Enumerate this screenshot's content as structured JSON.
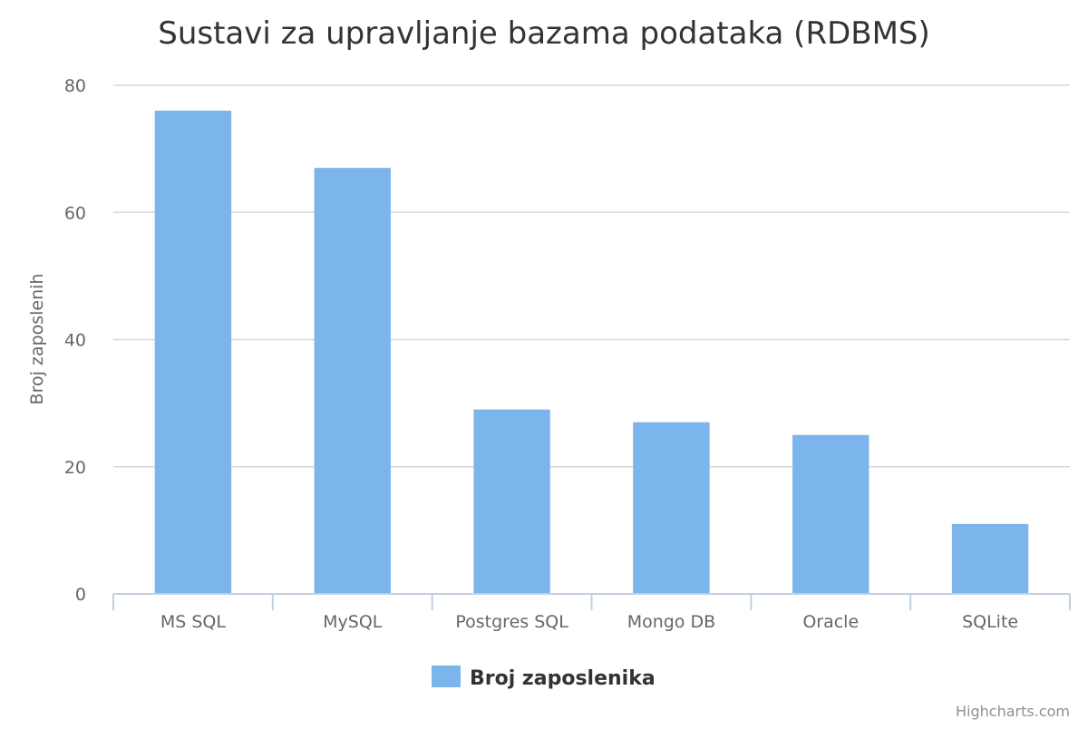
{
  "chart_data": {
    "type": "bar",
    "title": "Sustavi za upravljanje bazama podataka (RDBMS)",
    "xlabel": "",
    "ylabel": "Broj zaposlenih",
    "ylim": [
      0,
      80
    ],
    "yticks": [
      0,
      20,
      40,
      60,
      80
    ],
    "categories": [
      "MS SQL",
      "MySQL",
      "Postgres SQL",
      "Mongo DB",
      "Oracle",
      "SQLite"
    ],
    "series": [
      {
        "name": "Broj zaposlenika",
        "color": "#7cb5ec",
        "values": [
          76,
          67,
          29,
          27,
          25,
          11
        ]
      }
    ],
    "grid": true,
    "legend_position": "bottom-center"
  },
  "credits": "Highcharts.com",
  "colors": {
    "grid": "#d8d8d8",
    "axis": "#c0d0e0",
    "text": "#333333",
    "muted": "#666666"
  }
}
